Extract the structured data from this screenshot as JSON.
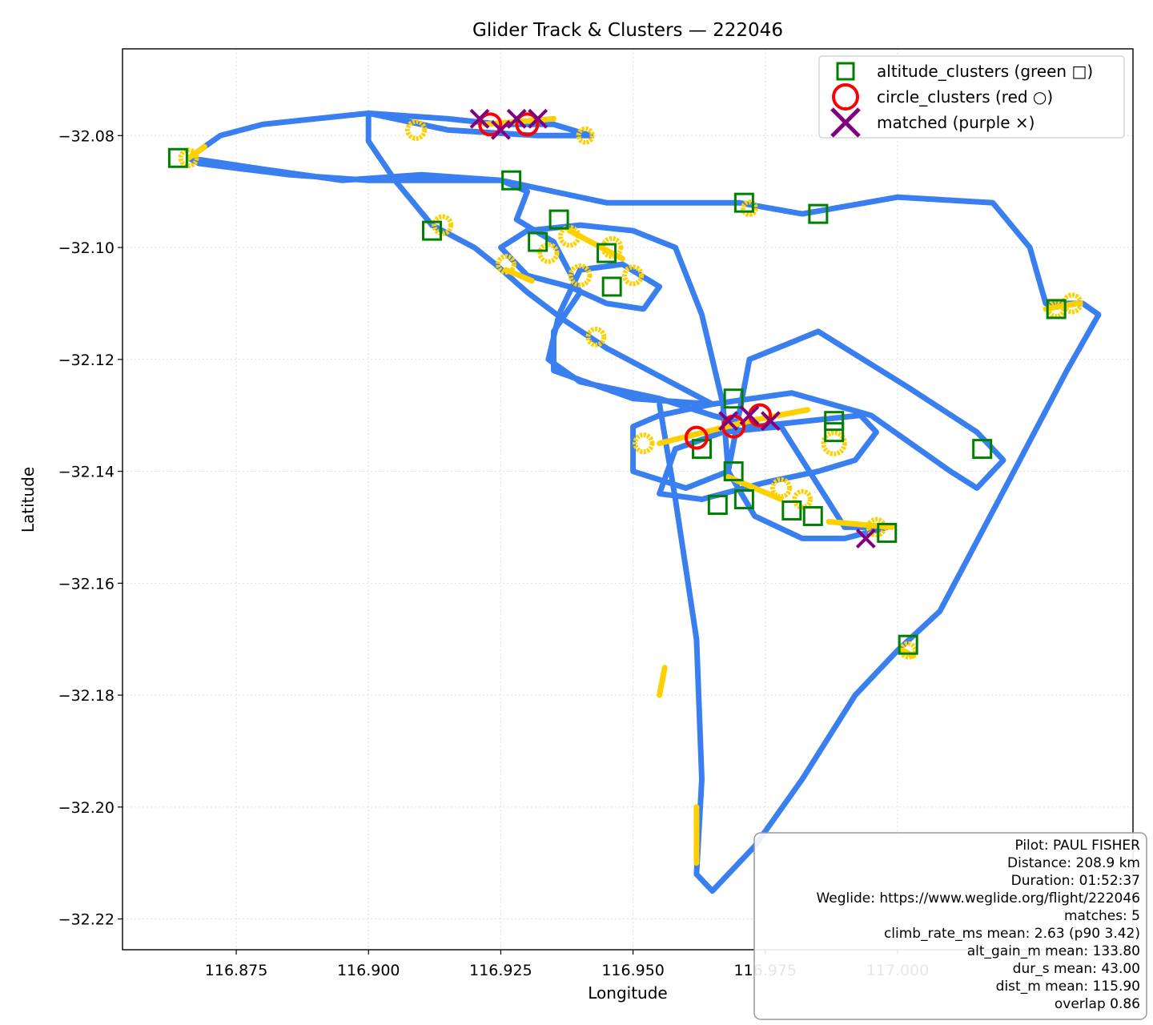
{
  "chart_data": {
    "type": "scatter",
    "title": "Glider Track & Clusters — 222046",
    "xlabel": "Longitude",
    "ylabel": "Latitude",
    "xlim": [
      116.8535,
      117.0445
    ],
    "ylim": [
      -32.2255,
      -32.0645
    ],
    "x_ticks": [
      116.875,
      116.9,
      116.925,
      116.95,
      116.975,
      117.0
    ],
    "x_tick_labels": [
      "116.875",
      "116.900",
      "116.925",
      "116.950",
      "116.975",
      "117.000"
    ],
    "y_ticks": [
      -32.08,
      -32.1,
      -32.12,
      -32.14,
      -32.16,
      -32.18,
      -32.2,
      -32.22
    ],
    "y_tick_labels": [
      "−32.08",
      "−32.10",
      "−32.12",
      "−32.14",
      "−32.16",
      "−32.18",
      "−32.20",
      "−32.22"
    ],
    "grid": true,
    "legend_position": "top-right",
    "colors": {
      "track": "#3a7ff0",
      "climb": "#ffd000",
      "altitude_clusters": "#008000",
      "circle_clusters": "#ff0000",
      "matched": "#800080"
    },
    "legend": [
      {
        "key": "altitude_clusters",
        "label": "altitude_clusters (green □)",
        "marker": "square"
      },
      {
        "key": "circle_clusters",
        "label": "circle_clusters (red ○)",
        "marker": "circle"
      },
      {
        "key": "matched",
        "label": "matched (purple ×)",
        "marker": "x"
      }
    ],
    "track": [
      [
        116.866,
        -32.084
      ],
      [
        116.872,
        -32.08
      ],
      [
        116.88,
        -32.078
      ],
      [
        116.89,
        -32.077
      ],
      [
        116.9,
        -32.076
      ],
      [
        116.915,
        -32.077
      ],
      [
        116.925,
        -32.078
      ],
      [
        116.935,
        -32.078
      ],
      [
        116.942,
        -32.08
      ],
      [
        116.932,
        -32.08
      ],
      [
        116.915,
        -32.079
      ],
      [
        116.9,
        -32.076
      ],
      [
        116.9,
        -32.081
      ],
      [
        116.905,
        -32.088
      ],
      [
        116.912,
        -32.096
      ],
      [
        116.92,
        -32.1
      ],
      [
        116.924,
        -32.103
      ],
      [
        116.93,
        -32.108
      ],
      [
        116.937,
        -32.113
      ],
      [
        116.945,
        -32.118
      ],
      [
        116.955,
        -32.123
      ],
      [
        116.965,
        -32.128
      ],
      [
        116.955,
        -32.13
      ],
      [
        116.95,
        -32.132
      ],
      [
        116.95,
        -32.14
      ],
      [
        116.96,
        -32.143
      ],
      [
        116.968,
        -32.14
      ],
      [
        116.967,
        -32.128
      ],
      [
        116.963,
        -32.112
      ],
      [
        116.958,
        -32.1
      ],
      [
        116.95,
        -32.097
      ],
      [
        116.94,
        -32.096
      ],
      [
        116.93,
        -32.097
      ],
      [
        116.925,
        -32.1
      ],
      [
        116.93,
        -32.105
      ],
      [
        116.938,
        -32.107
      ],
      [
        116.945,
        -32.11
      ],
      [
        116.952,
        -32.111
      ],
      [
        116.955,
        -32.107
      ],
      [
        116.948,
        -32.103
      ],
      [
        116.94,
        -32.104
      ],
      [
        116.936,
        -32.112
      ],
      [
        116.934,
        -32.12
      ],
      [
        116.94,
        -32.124
      ],
      [
        116.955,
        -32.127
      ],
      [
        116.965,
        -32.13
      ],
      [
        116.973,
        -32.132
      ],
      [
        116.983,
        -32.131
      ],
      [
        116.993,
        -32.13
      ],
      [
        116.996,
        -32.133
      ],
      [
        116.992,
        -32.138
      ],
      [
        116.985,
        -32.14
      ],
      [
        116.975,
        -32.142
      ],
      [
        116.963,
        -32.145
      ],
      [
        116.955,
        -32.144
      ],
      [
        116.958,
        -32.136
      ],
      [
        116.967,
        -32.133
      ],
      [
        116.978,
        -32.132
      ],
      [
        116.99,
        -32.15
      ],
      [
        116.998,
        -32.15
      ],
      [
        116.99,
        -32.152
      ],
      [
        116.982,
        -32.152
      ],
      [
        116.973,
        -32.148
      ],
      [
        116.968,
        -32.14
      ],
      [
        116.972,
        -32.12
      ],
      [
        116.985,
        -32.115
      ],
      [
        117.002,
        -32.125
      ],
      [
        117.015,
        -32.133
      ],
      [
        117.02,
        -32.138
      ],
      [
        117.015,
        -32.143
      ],
      [
        117.01,
        -32.14
      ],
      [
        116.995,
        -32.13
      ],
      [
        116.98,
        -32.126
      ],
      [
        116.965,
        -32.128
      ],
      [
        116.95,
        -32.127
      ],
      [
        116.935,
        -32.122
      ],
      [
        116.935,
        -32.115
      ],
      [
        116.94,
        -32.108
      ],
      [
        116.935,
        -32.099
      ],
      [
        116.928,
        -32.095
      ],
      [
        116.93,
        -32.09
      ],
      [
        116.925,
        -32.088
      ],
      [
        116.91,
        -32.087
      ],
      [
        116.895,
        -32.088
      ],
      [
        116.88,
        -32.086
      ],
      [
        116.866,
        -32.084
      ],
      [
        116.868,
        -32.085
      ],
      [
        116.885,
        -32.087
      ],
      [
        116.9,
        -32.088
      ],
      [
        116.925,
        -32.088
      ],
      [
        116.945,
        -32.092
      ],
      [
        116.97,
        -32.092
      ],
      [
        116.982,
        -32.094
      ],
      [
        117.0,
        -32.091
      ],
      [
        117.018,
        -32.092
      ],
      [
        117.025,
        -32.1
      ],
      [
        117.028,
        -32.11
      ],
      [
        117.035,
        -32.11
      ],
      [
        117.038,
        -32.112
      ],
      [
        117.032,
        -32.122
      ],
      [
        117.022,
        -32.14
      ],
      [
        117.008,
        -32.165
      ],
      [
        117.0,
        -32.172
      ],
      [
        116.992,
        -32.18
      ],
      [
        116.982,
        -32.195
      ],
      [
        116.973,
        -32.207
      ],
      [
        116.965,
        -32.215
      ],
      [
        116.962,
        -32.212
      ],
      [
        116.963,
        -32.195
      ],
      [
        116.962,
        -32.17
      ],
      [
        116.958,
        -32.145
      ],
      [
        116.955,
        -32.128
      ]
    ],
    "climb_segments": [
      [
        [
          116.866,
          -32.084
        ],
        [
          116.869,
          -32.082
        ]
      ],
      [
        [
          116.922,
          -32.078
        ],
        [
          116.935,
          -32.077
        ]
      ],
      [
        [
          116.926,
          -32.104
        ],
        [
          116.931,
          -32.106
        ]
      ],
      [
        [
          116.938,
          -32.097
        ],
        [
          116.948,
          -32.102
        ]
      ],
      [
        [
          116.955,
          -32.135
        ],
        [
          116.972,
          -32.131
        ]
      ],
      [
        [
          116.972,
          -32.131
        ],
        [
          116.983,
          -32.129
        ]
      ],
      [
        [
          116.968,
          -32.141
        ],
        [
          116.978,
          -32.145
        ]
      ],
      [
        [
          116.987,
          -32.149
        ],
        [
          116.999,
          -32.15
        ]
      ],
      [
        [
          117.028,
          -32.111
        ],
        [
          117.034,
          -32.11
        ]
      ],
      [
        [
          116.962,
          -32.2
        ],
        [
          116.962,
          -32.21
        ]
      ],
      [
        [
          116.955,
          -32.18
        ],
        [
          116.956,
          -32.175
        ]
      ],
      [
        [
          117.001,
          -32.172
        ],
        [
          117.003,
          -32.173
        ]
      ]
    ],
    "climb_loops": [
      [
        116.866,
        -32.084,
        0.0015
      ],
      [
        116.909,
        -32.079,
        0.0016
      ],
      [
        116.914,
        -32.096,
        0.0016
      ],
      [
        116.926,
        -32.103,
        0.0015
      ],
      [
        116.934,
        -32.101,
        0.0016
      ],
      [
        116.938,
        -32.098,
        0.0017
      ],
      [
        116.94,
        -32.105,
        0.0018
      ],
      [
        116.946,
        -32.1,
        0.0017
      ],
      [
        116.95,
        -32.105,
        0.0016
      ],
      [
        116.943,
        -32.116,
        0.0015
      ],
      [
        116.941,
        -32.08,
        0.0013
      ],
      [
        116.952,
        -32.135,
        0.0016
      ],
      [
        116.978,
        -32.143,
        0.0016
      ],
      [
        116.982,
        -32.145,
        0.0015
      ],
      [
        116.988,
        -32.135,
        0.002
      ],
      [
        116.996,
        -32.15,
        0.0015
      ],
      [
        117.03,
        -32.111,
        0.0014
      ],
      [
        117.033,
        -32.11,
        0.0016
      ],
      [
        117.002,
        -32.172,
        0.0013
      ],
      [
        116.972,
        -32.093,
        0.0012
      ]
    ],
    "altitude_clusters": [
      [
        116.864,
        -32.084
      ],
      [
        116.927,
        -32.088
      ],
      [
        116.912,
        -32.097
      ],
      [
        116.936,
        -32.095
      ],
      [
        116.932,
        -32.099
      ],
      [
        116.945,
        -32.101
      ],
      [
        116.946,
        -32.107
      ],
      [
        116.971,
        -32.092
      ],
      [
        116.985,
        -32.094
      ],
      [
        116.969,
        -32.127
      ],
      [
        116.988,
        -32.131
      ],
      [
        116.988,
        -32.133
      ],
      [
        116.963,
        -32.136
      ],
      [
        116.969,
        -32.14
      ],
      [
        116.966,
        -32.146
      ],
      [
        116.971,
        -32.145
      ],
      [
        116.98,
        -32.147
      ],
      [
        116.984,
        -32.148
      ],
      [
        117.016,
        -32.136
      ],
      [
        116.998,
        -32.151
      ],
      [
        117.002,
        -32.171
      ],
      [
        117.03,
        -32.111
      ]
    ],
    "circle_clusters": [
      [
        116.923,
        -32.078
      ],
      [
        116.93,
        -32.078
      ],
      [
        116.962,
        -32.134
      ],
      [
        116.969,
        -32.132
      ],
      [
        116.974,
        -32.13
      ]
    ],
    "matched": [
      [
        116.921,
        -32.077
      ],
      [
        116.925,
        -32.079
      ],
      [
        116.928,
        -32.077
      ],
      [
        116.932,
        -32.077
      ],
      [
        116.968,
        -32.131
      ],
      [
        116.972,
        -32.13
      ],
      [
        116.976,
        -32.131
      ],
      [
        116.994,
        -32.152
      ]
    ]
  },
  "info_box": {
    "lines": [
      "Pilot: PAUL FISHER",
      "Distance: 208.9 km",
      "Duration: 01:52:37",
      "Weglide: https://www.weglide.org/flight/222046",
      "matches: 5",
      "climb_rate_ms mean: 2.63 (p90 3.42)",
      "alt_gain_m mean: 133.80",
      "dur_s mean: 43.00",
      "dist_m mean: 115.90",
      "overlap 0.86"
    ]
  }
}
